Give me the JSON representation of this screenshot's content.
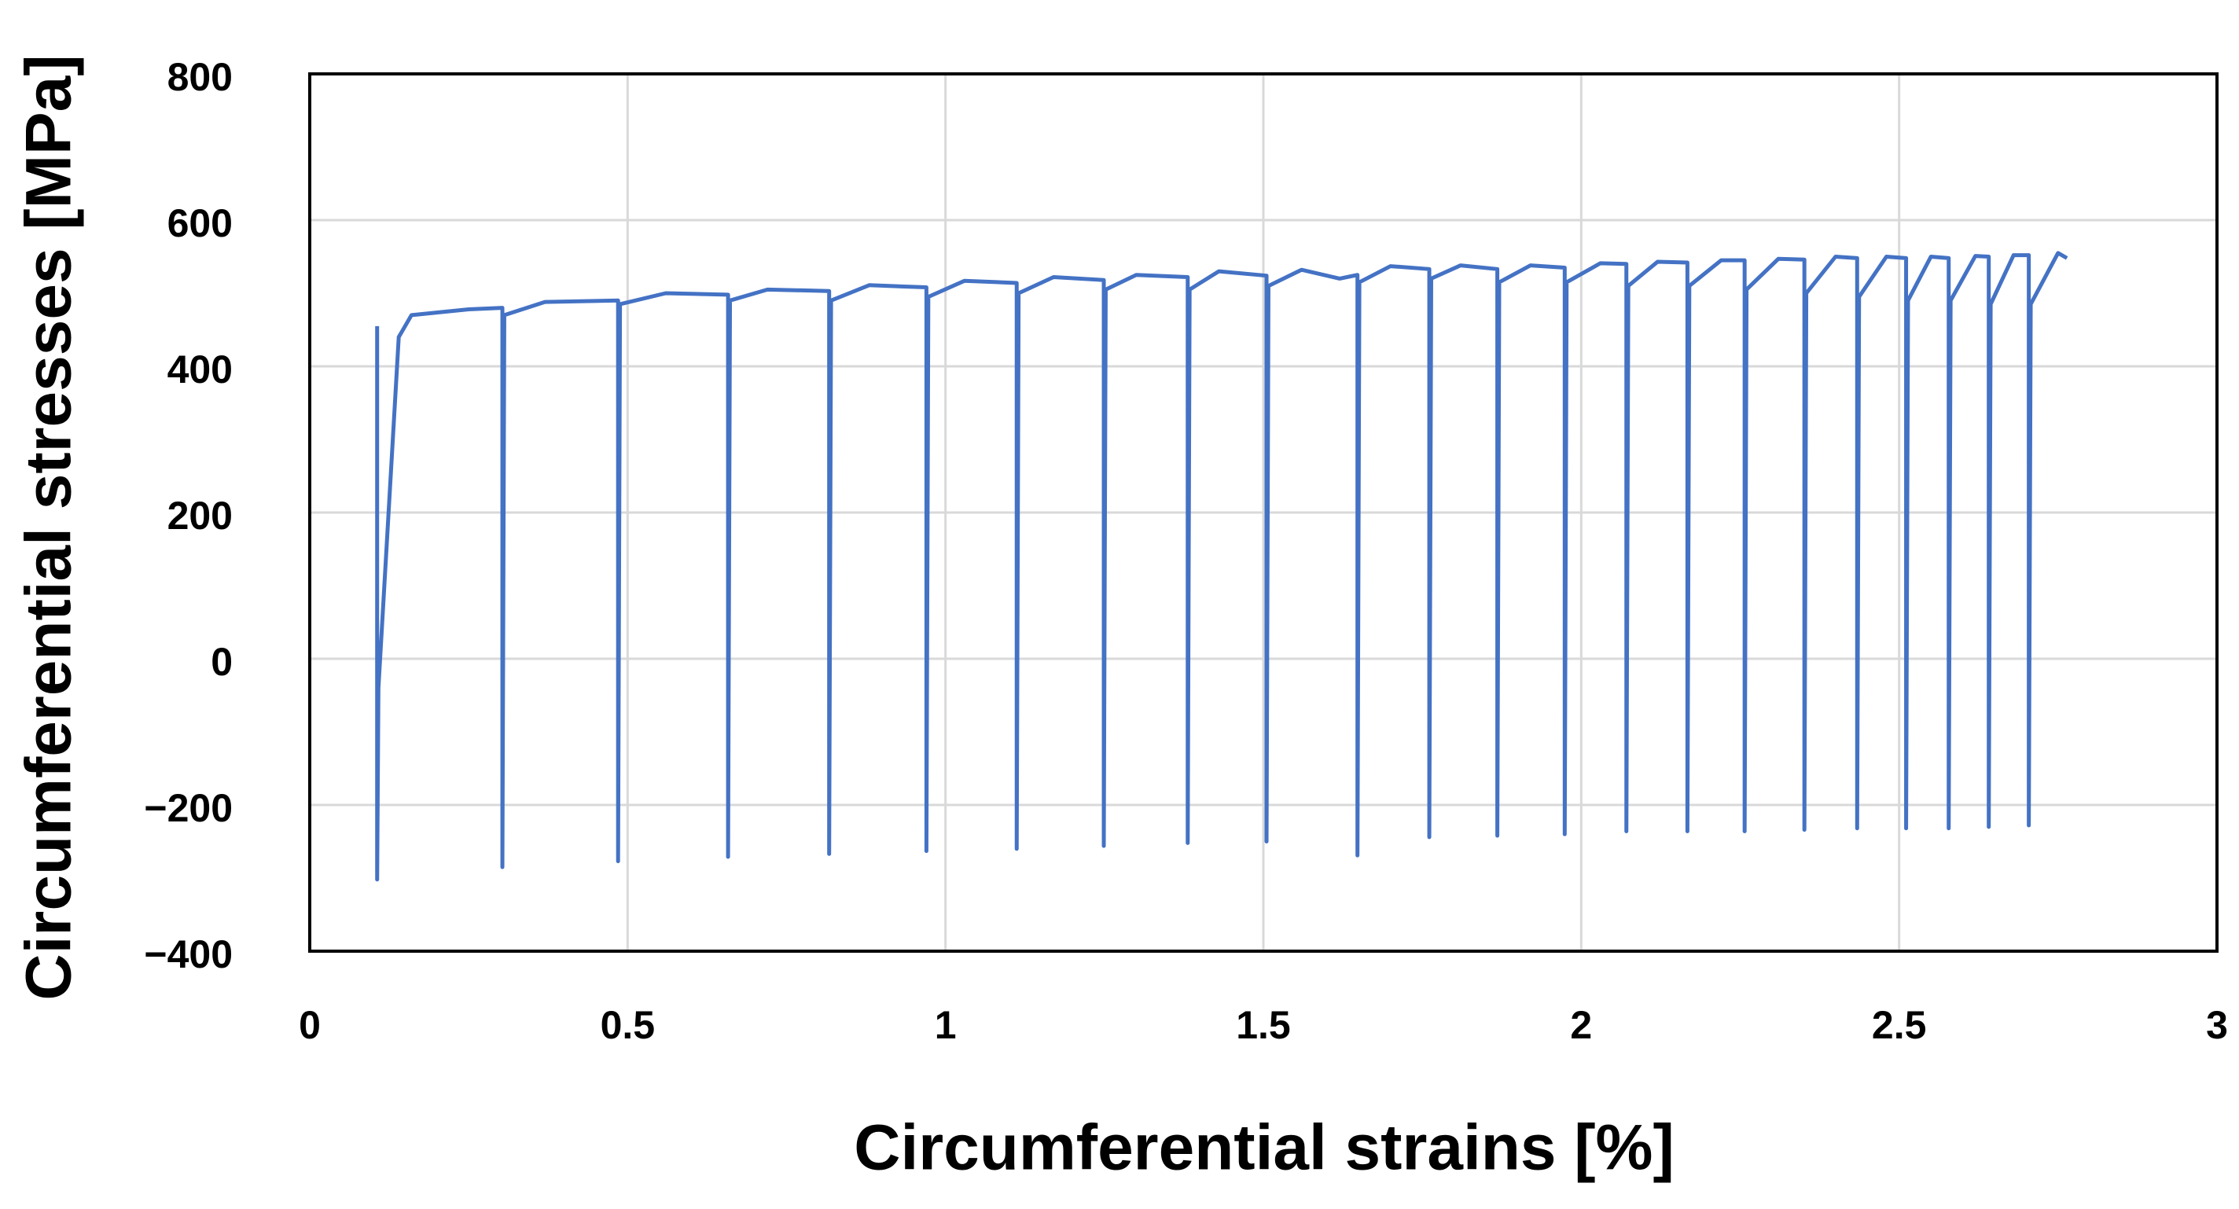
{
  "chart_data": {
    "type": "line",
    "xlabel": "Circumferential strains [%]",
    "ylabel": "Circumferential stresses [MPa]",
    "color": "#4472c4",
    "grid": true,
    "xlim": [
      0,
      3
    ],
    "xticks": [
      0,
      0.5,
      1,
      1.5,
      2,
      2.5,
      3
    ],
    "ylim": [
      -400,
      800
    ],
    "yticks": [
      {
        "value": -400,
        "label": "−400"
      },
      {
        "value": -200,
        "label": "−200"
      },
      0,
      200,
      400,
      600,
      800
    ],
    "x": [
      0.106,
      0.106,
      0.108,
      0.14,
      0.16,
      0.25,
      0.303,
      0.303,
      0.306,
      0.37,
      0.485,
      0.485,
      0.488,
      0.56,
      0.658,
      0.658,
      0.661,
      0.72,
      0.817,
      0.817,
      0.82,
      0.88,
      0.97,
      0.97,
      0.973,
      1.03,
      1.112,
      1.112,
      1.115,
      1.17,
      1.249,
      1.249,
      1.252,
      1.3,
      1.381,
      1.381,
      1.384,
      1.43,
      1.505,
      1.505,
      1.508,
      1.56,
      1.62,
      1.648,
      1.648,
      1.651,
      1.7,
      1.761,
      1.761,
      1.764,
      1.81,
      1.868,
      1.868,
      1.871,
      1.92,
      1.974,
      1.974,
      1.977,
      2.03,
      2.071,
      2.071,
      2.074,
      2.12,
      2.167,
      2.167,
      2.17,
      2.22,
      2.257,
      2.257,
      2.26,
      2.31,
      2.351,
      2.351,
      2.354,
      2.4,
      2.434,
      2.434,
      2.437,
      2.48,
      2.511,
      2.511,
      2.514,
      2.55,
      2.578,
      2.578,
      2.581,
      2.62,
      2.641,
      2.641,
      2.644,
      2.68,
      2.704,
      2.704,
      2.707,
      2.75,
      2.764
    ],
    "values": [
      455,
      -302,
      -40,
      440,
      470,
      478,
      480,
      -285,
      470,
      488,
      490,
      -277,
      485,
      500,
      498,
      -271,
      490,
      505,
      503,
      -267,
      490,
      511,
      508,
      -263,
      495,
      517,
      514,
      -260,
      500,
      522,
      518,
      -256,
      505,
      525,
      522,
      -252,
      505,
      530,
      524,
      -250,
      510,
      532,
      520,
      525,
      -269,
      515,
      537,
      533,
      -244,
      520,
      538,
      533,
      -242,
      515,
      538,
      535,
      -240,
      515,
      541,
      540,
      -236,
      510,
      543,
      542,
      -236,
      510,
      545,
      545,
      -236,
      505,
      547,
      546,
      -234,
      500,
      550,
      548,
      -232,
      495,
      550,
      548,
      -232,
      490,
      550,
      548,
      -232,
      490,
      551,
      550,
      -230,
      485,
      552,
      552,
      -228,
      485,
      555,
      548
    ]
  }
}
